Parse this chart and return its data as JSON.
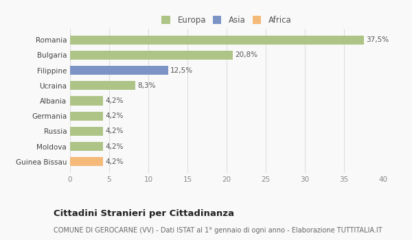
{
  "countries": [
    "Romania",
    "Bulgaria",
    "Filippine",
    "Ucraina",
    "Albania",
    "Germania",
    "Russia",
    "Moldova",
    "Guinea Bissau"
  ],
  "values": [
    37.5,
    20.8,
    12.5,
    8.3,
    4.2,
    4.2,
    4.2,
    4.2,
    4.2
  ],
  "labels": [
    "37,5%",
    "20,8%",
    "12,5%",
    "8,3%",
    "4,2%",
    "4,2%",
    "4,2%",
    "4,2%",
    "4,2%"
  ],
  "colors": [
    "#aec487",
    "#aec487",
    "#7b93c5",
    "#aec487",
    "#aec487",
    "#aec487",
    "#aec487",
    "#aec487",
    "#f5b97a"
  ],
  "legend_labels": [
    "Europa",
    "Asia",
    "Africa"
  ],
  "legend_colors": [
    "#aec487",
    "#7b93c5",
    "#f5b97a"
  ],
  "title": "Cittadini Stranieri per Cittadinanza",
  "subtitle": "COMUNE DI GEROCARNE (VV) - Dati ISTAT al 1° gennaio di ogni anno - Elaborazione TUTTITALIA.IT",
  "xlim": [
    0,
    40
  ],
  "xticks": [
    0,
    5,
    10,
    15,
    20,
    25,
    30,
    35,
    40
  ],
  "bg_color": "#f9f9f9",
  "grid_color": "#dddddd",
  "bar_height": 0.6,
  "title_fontsize": 9.5,
  "subtitle_fontsize": 7.0,
  "label_fontsize": 7.5,
  "tick_fontsize": 7.5,
  "legend_fontsize": 8.5
}
